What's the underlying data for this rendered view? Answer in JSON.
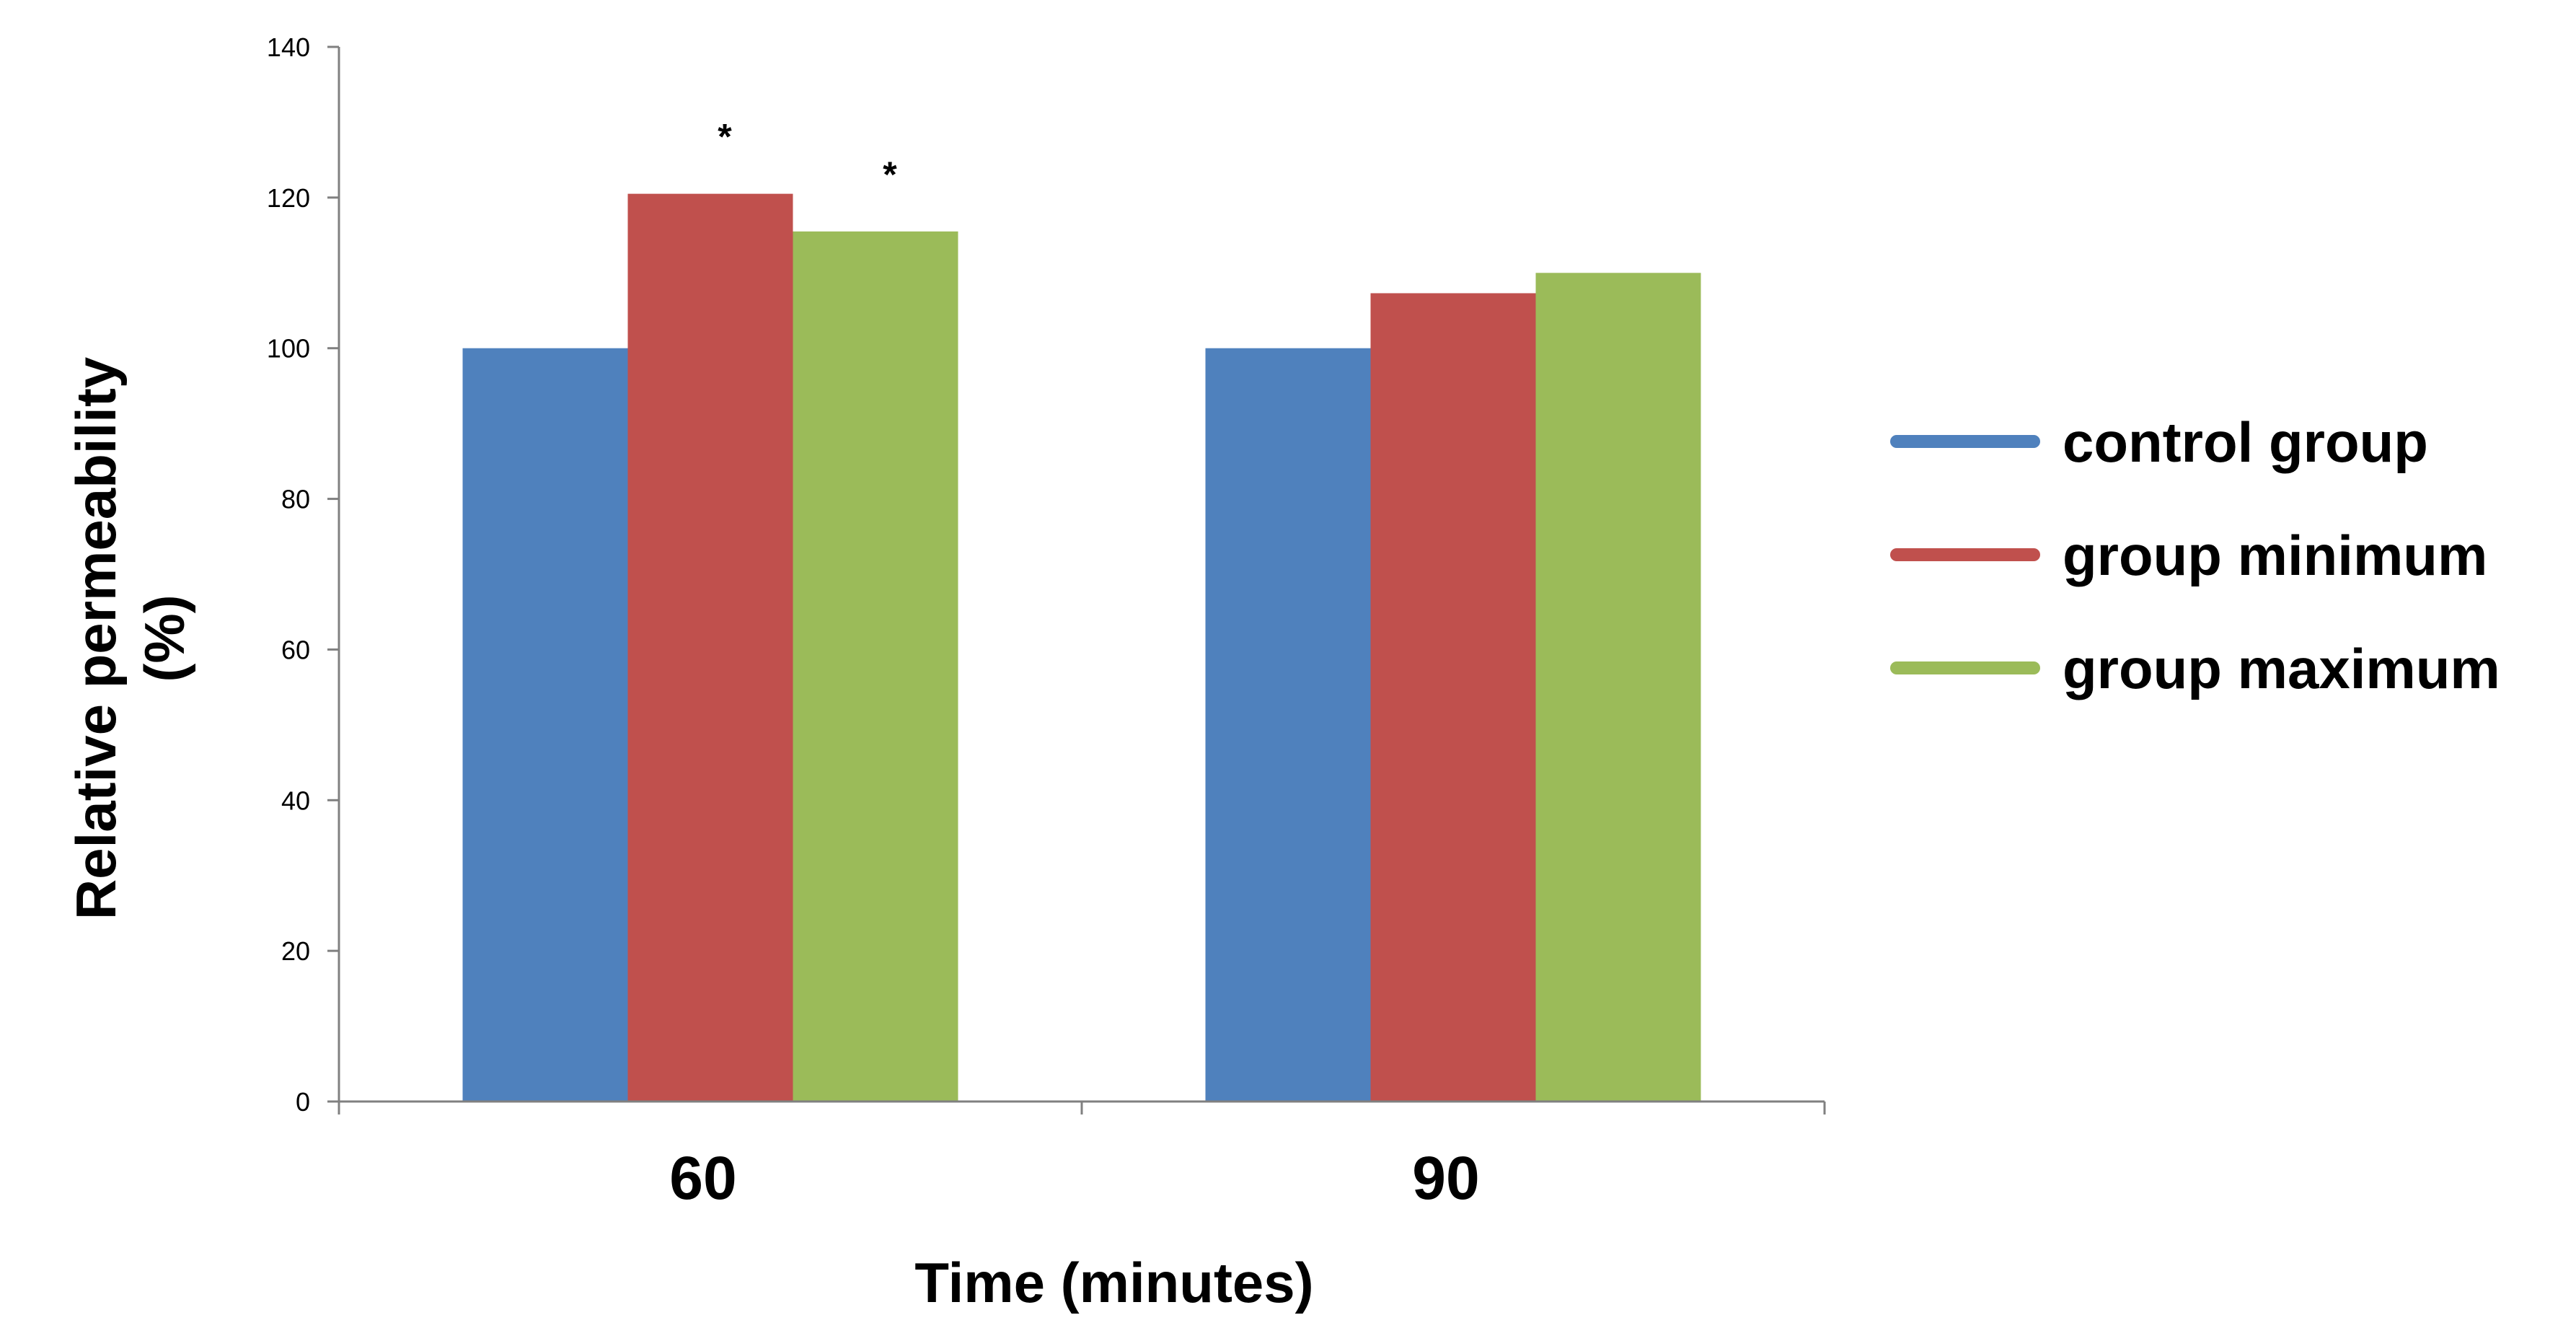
{
  "chart_data": {
    "type": "bar",
    "categories": [
      "60",
      "90"
    ],
    "series": [
      {
        "name": "control group",
        "color": "#4F81BD",
        "values": [
          100,
          100
        ]
      },
      {
        "name": "group minimum",
        "color": "#C0504D",
        "values": [
          120.5,
          107.3
        ]
      },
      {
        "name": "group maximum",
        "color": "#9BBB59",
        "values": [
          115.5,
          110
        ]
      }
    ],
    "xlabel": "Time (minutes)",
    "ylabel_lines": [
      "Relative permeability",
      "(%)"
    ],
    "ylim": [
      0,
      140
    ],
    "yticks": [
      0,
      20,
      40,
      60,
      80,
      100,
      120,
      140
    ],
    "grid": false,
    "legend_position": "right",
    "annotations": [
      {
        "text": "*",
        "category": "60",
        "series": "group minimum"
      },
      {
        "text": "*",
        "category": "60",
        "series": "group maximum"
      }
    ]
  }
}
